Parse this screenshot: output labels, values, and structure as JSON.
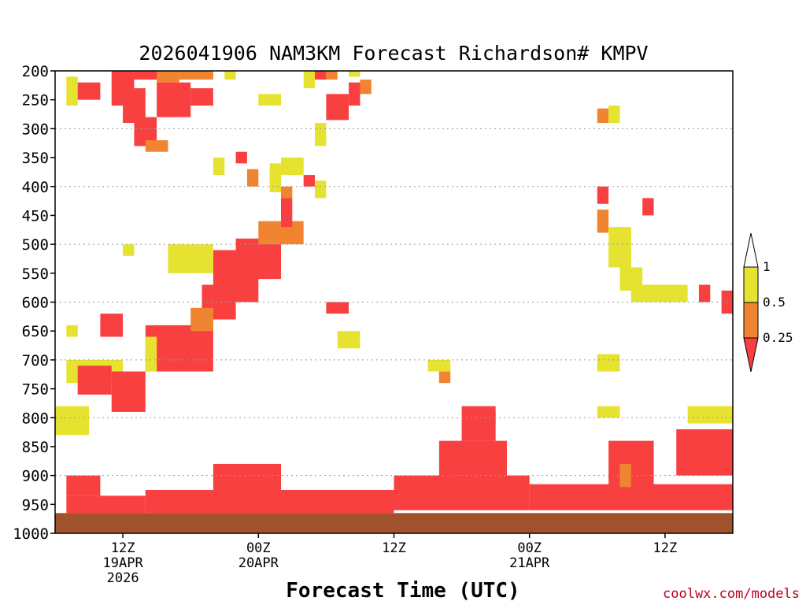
{
  "chart_data": {
    "type": "heatmap",
    "title": "2026041906 NAM3KM Forecast Richardson# KMPV",
    "xlabel": "Forecast Time (UTC)",
    "ylabel": "",
    "credit": "coolwx.com/models",
    "y_axis": {
      "scale": "pressure (inverted)",
      "range_hPa": [
        200,
        1000
      ],
      "ticks": [
        "200",
        "250",
        "300",
        "350",
        "400",
        "450",
        "500",
        "550",
        "600",
        "650",
        "700",
        "750",
        "800",
        "850",
        "900",
        "950",
        "1000"
      ]
    },
    "x_axis": {
      "range_forecast_hours": [
        0,
        60
      ],
      "ticks": [
        {
          "hour": 6,
          "lines": [
            "12Z",
            "19APR",
            "2026"
          ]
        },
        {
          "hour": 18,
          "lines": [
            "00Z",
            "20APR"
          ]
        },
        {
          "hour": 30,
          "lines": [
            "12Z"
          ]
        },
        {
          "hour": 42,
          "lines": [
            "00Z",
            "21APR"
          ]
        },
        {
          "hour": 54,
          "lines": [
            "12Z"
          ]
        }
      ]
    },
    "grid": "dotted horizontal at 300, 400, 500, 600, 700, 800, 900 hPa",
    "ground_color": "#a0522d",
    "ground_top_hPa": 965,
    "colorbar": {
      "levels": [
        "1",
        "0.5",
        "0.25"
      ],
      "colors": {
        "gt1": "#ffffff",
        "0.5-1": "#e6e230",
        "0.25-0.5": "#f08430",
        "lt0.25": "#f94040"
      },
      "legend": [
        {
          "label": "1",
          "color": "#ffffff"
        },
        {
          "label": "0.5",
          "color": "#e6e230"
        },
        {
          "label": "0.25",
          "color": "#f08430"
        },
        {
          "label": "",
          "color": "#f94040"
        }
      ]
    },
    "regions": [
      {
        "h": [
          1,
          8
        ],
        "p": [
          935,
          965
        ],
        "c": "lt0.25"
      },
      {
        "h": [
          8,
          30
        ],
        "p": [
          925,
          965
        ],
        "c": "lt0.25"
      },
      {
        "h": [
          14,
          20
        ],
        "p": [
          880,
          925
        ],
        "c": "lt0.25"
      },
      {
        "h": [
          30,
          42
        ],
        "p": [
          900,
          960
        ],
        "c": "lt0.25"
      },
      {
        "h": [
          34,
          40
        ],
        "p": [
          840,
          905
        ],
        "c": "lt0.25"
      },
      {
        "h": [
          36,
          39
        ],
        "p": [
          780,
          840
        ],
        "c": "lt0.25"
      },
      {
        "h": [
          42,
          60
        ],
        "p": [
          915,
          960
        ],
        "c": "lt0.25"
      },
      {
        "h": [
          55,
          60
        ],
        "p": [
          820,
          900
        ],
        "c": "lt0.25"
      },
      {
        "h": [
          1,
          4
        ],
        "p": [
          900,
          935
        ],
        "c": "lt0.25"
      },
      {
        "h": [
          0,
          3
        ],
        "p": [
          780,
          830
        ],
        "c": "0.5-1"
      },
      {
        "h": [
          1,
          2
        ],
        "p": [
          640,
          660
        ],
        "c": "0.5-1"
      },
      {
        "h": [
          1,
          6
        ],
        "p": [
          700,
          740
        ],
        "c": "0.5-1"
      },
      {
        "h": [
          2,
          5
        ],
        "p": [
          710,
          760
        ],
        "c": "lt0.25"
      },
      {
        "h": [
          4,
          6
        ],
        "p": [
          620,
          660
        ],
        "c": "lt0.25"
      },
      {
        "h": [
          5,
          8
        ],
        "p": [
          720,
          790
        ],
        "c": "lt0.25"
      },
      {
        "h": [
          8,
          14
        ],
        "p": [
          640,
          720
        ],
        "c": "lt0.25"
      },
      {
        "h": [
          8,
          9
        ],
        "p": [
          660,
          720
        ],
        "c": "0.5-1"
      },
      {
        "h": [
          13,
          16
        ],
        "p": [
          570,
          630
        ],
        "c": "lt0.25"
      },
      {
        "h": [
          12,
          14
        ],
        "p": [
          610,
          650
        ],
        "c": "0.25-0.5"
      },
      {
        "h": [
          14,
          18
        ],
        "p": [
          510,
          600
        ],
        "c": "lt0.25"
      },
      {
        "h": [
          16,
          20
        ],
        "p": [
          490,
          560
        ],
        "c": "lt0.25"
      },
      {
        "h": [
          18,
          22
        ],
        "p": [
          460,
          500
        ],
        "c": "0.25-0.5"
      },
      {
        "h": [
          20,
          21
        ],
        "p": [
          420,
          470
        ],
        "c": "lt0.25"
      },
      {
        "h": [
          19,
          20
        ],
        "p": [
          360,
          410
        ],
        "c": "0.5-1"
      },
      {
        "h": [
          20,
          22
        ],
        "p": [
          350,
          380
        ],
        "c": "0.5-1"
      },
      {
        "h": [
          24,
          26
        ],
        "p": [
          600,
          620
        ],
        "c": "lt0.25"
      },
      {
        "h": [
          25,
          27
        ],
        "p": [
          650,
          680
        ],
        "c": "0.5-1"
      },
      {
        "h": [
          10,
          14
        ],
        "p": [
          500,
          550
        ],
        "c": "0.5-1"
      },
      {
        "h": [
          6,
          7
        ],
        "p": [
          500,
          520
        ],
        "c": "0.5-1"
      },
      {
        "h": [
          1,
          2
        ],
        "p": [
          210,
          260
        ],
        "c": "0.5-1"
      },
      {
        "h": [
          2,
          4
        ],
        "p": [
          220,
          250
        ],
        "c": "lt0.25"
      },
      {
        "h": [
          5,
          7
        ],
        "p": [
          200,
          260
        ],
        "c": "lt0.25"
      },
      {
        "h": [
          6,
          8
        ],
        "p": [
          230,
          290
        ],
        "c": "lt0.25"
      },
      {
        "h": [
          7,
          9
        ],
        "p": [
          280,
          330
        ],
        "c": "lt0.25"
      },
      {
        "h": [
          7,
          10
        ],
        "p": [
          200,
          215
        ],
        "c": "lt0.25"
      },
      {
        "h": [
          9,
          11
        ],
        "p": [
          200,
          220
        ],
        "c": "0.25-0.5"
      },
      {
        "h": [
          9,
          12
        ],
        "p": [
          220,
          280
        ],
        "c": "lt0.25"
      },
      {
        "h": [
          11,
          14
        ],
        "p": [
          200,
          215
        ],
        "c": "0.25-0.5"
      },
      {
        "h": [
          12,
          14
        ],
        "p": [
          230,
          260
        ],
        "c": "lt0.25"
      },
      {
        "h": [
          8,
          10
        ],
        "p": [
          320,
          340
        ],
        "c": "0.25-0.5"
      },
      {
        "h": [
          15,
          16
        ],
        "p": [
          200,
          215
        ],
        "c": "0.5-1"
      },
      {
        "h": [
          18,
          20
        ],
        "p": [
          240,
          260
        ],
        "c": "0.5-1"
      },
      {
        "h": [
          22,
          23
        ],
        "p": [
          200,
          230
        ],
        "c": "0.5-1"
      },
      {
        "h": [
          23,
          24
        ],
        "p": [
          200,
          215
        ],
        "c": "lt0.25"
      },
      {
        "h": [
          24,
          25
        ],
        "p": [
          200,
          215
        ],
        "c": "0.25-0.5"
      },
      {
        "h": [
          24,
          26
        ],
        "p": [
          240,
          285
        ],
        "c": "lt0.25"
      },
      {
        "h": [
          26,
          27
        ],
        "p": [
          200,
          210
        ],
        "c": "0.5-1"
      },
      {
        "h": [
          27,
          28
        ],
        "p": [
          215,
          240
        ],
        "c": "0.25-0.5"
      },
      {
        "h": [
          26,
          27
        ],
        "p": [
          220,
          260
        ],
        "c": "lt0.25"
      },
      {
        "h": [
          23,
          24
        ],
        "p": [
          290,
          330
        ],
        "c": "0.5-1"
      },
      {
        "h": [
          14,
          15
        ],
        "p": [
          350,
          380
        ],
        "c": "0.5-1"
      },
      {
        "h": [
          17,
          18
        ],
        "p": [
          370,
          400
        ],
        "c": "0.25-0.5"
      },
      {
        "h": [
          16,
          17
        ],
        "p": [
          340,
          360
        ],
        "c": "lt0.25"
      },
      {
        "h": [
          22,
          23
        ],
        "p": [
          380,
          400
        ],
        "c": "lt0.25"
      },
      {
        "h": [
          20,
          21
        ],
        "p": [
          400,
          420
        ],
        "c": "0.25-0.5"
      },
      {
        "h": [
          23,
          24
        ],
        "p": [
          390,
          420
        ],
        "c": "0.5-1"
      },
      {
        "h": [
          37,
          39
        ],
        "p": [
          790,
          810
        ],
        "c": "lt0.25"
      },
      {
        "h": [
          34,
          35
        ],
        "p": [
          720,
          740
        ],
        "c": "0.25-0.5"
      },
      {
        "h": [
          33,
          35
        ],
        "p": [
          700,
          720
        ],
        "c": "0.5-1"
      },
      {
        "h": [
          48,
          50
        ],
        "p": [
          690,
          720
        ],
        "c": "0.5-1"
      },
      {
        "h": [
          48,
          49
        ],
        "p": [
          400,
          430
        ],
        "c": "lt0.25"
      },
      {
        "h": [
          48,
          49
        ],
        "p": [
          440,
          480
        ],
        "c": "0.25-0.5"
      },
      {
        "h": [
          49,
          51
        ],
        "p": [
          470,
          540
        ],
        "c": "0.5-1"
      },
      {
        "h": [
          50,
          52
        ],
        "p": [
          540,
          580
        ],
        "c": "0.5-1"
      },
      {
        "h": [
          51,
          56
        ],
        "p": [
          570,
          600
        ],
        "c": "0.5-1"
      },
      {
        "h": [
          52,
          53
        ],
        "p": [
          420,
          450
        ],
        "c": "lt0.25"
      },
      {
        "h": [
          57,
          58
        ],
        "p": [
          570,
          600
        ],
        "c": "lt0.25"
      },
      {
        "h": [
          59,
          60
        ],
        "p": [
          580,
          620
        ],
        "c": "lt0.25"
      },
      {
        "h": [
          48,
          49
        ],
        "p": [
          265,
          290
        ],
        "c": "0.25-0.5"
      },
      {
        "h": [
          49,
          50
        ],
        "p": [
          260,
          290
        ],
        "c": "0.5-1"
      },
      {
        "h": [
          48,
          50
        ],
        "p": [
          780,
          800
        ],
        "c": "0.5-1"
      },
      {
        "h": [
          49,
          53
        ],
        "p": [
          840,
          920
        ],
        "c": "lt0.25"
      },
      {
        "h": [
          50,
          51
        ],
        "p": [
          880,
          920
        ],
        "c": "0.25-0.5"
      },
      {
        "h": [
          56,
          60
        ],
        "p": [
          780,
          810
        ],
        "c": "0.5-1"
      }
    ]
  }
}
